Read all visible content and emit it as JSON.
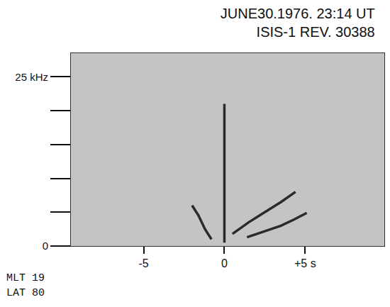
{
  "chart_data": {
    "type": "line",
    "title": [
      "JUNE30.1976. 23:14 UT",
      "ISIS-1 REV. 30388"
    ],
    "annotations": [
      "MLT 19",
      "LAT 80"
    ],
    "color": "#2a2a2a",
    "grid": false,
    "xlim": [
      -9.5,
      9.9
    ],
    "xticks": [
      -5,
      0,
      {
        "value": 5,
        "label": "+5 s"
      }
    ],
    "ylim": [
      0,
      28.5
    ],
    "yticks": [
      0,
      {
        "value": 5,
        "label": null
      },
      {
        "value": 10,
        "label": null
      },
      {
        "value": 15,
        "label": null
      },
      {
        "value": 20,
        "label": null
      },
      {
        "value": 25,
        "label": "25 kHz"
      }
    ],
    "series": [
      {
        "x": [
          0,
          0
        ],
        "values": [
          0.5,
          21
        ]
      },
      {
        "x": [
          -2.0,
          -1.6,
          -1.2,
          -0.8
        ],
        "values": [
          6.0,
          4.5,
          2.5,
          1.0
        ]
      },
      {
        "x": [
          0.5,
          1.5,
          2.5,
          3.5,
          4.4
        ],
        "values": [
          1.8,
          3.5,
          5.0,
          6.5,
          8.0
        ]
      },
      {
        "x": [
          1.4,
          2.5,
          3.5,
          4.3,
          5.1
        ],
        "values": [
          1.3,
          2.2,
          3.0,
          3.9,
          4.9
        ]
      }
    ]
  }
}
